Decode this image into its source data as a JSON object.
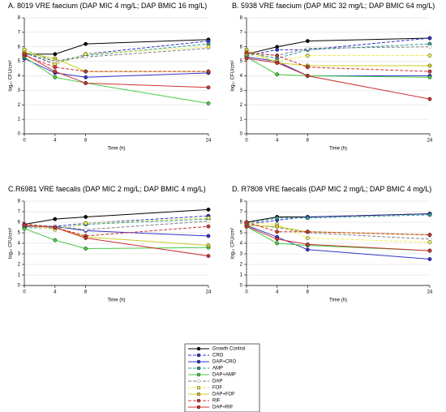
{
  "chart_data": [
    {
      "type": "line",
      "title": "A. 8019 VRE faecium (DAP MIC 4 mg/L; DAP BMIC 16 mg/L)",
      "x_label": "Time (h)",
      "y_label": "log₁₀ CFU/cm²",
      "x": [
        0,
        4,
        8,
        24
      ],
      "xlim": [
        0,
        24
      ],
      "xticks": [
        0,
        4,
        8,
        24
      ],
      "ylim": [
        0,
        8
      ],
      "yticks": [
        0,
        1,
        2,
        3,
        4,
        5,
        6,
        7,
        8
      ],
      "grid": true,
      "series": [
        {
          "values": [
            5.5,
            5.5,
            6.2,
            6.5
          ]
        },
        {
          "values": [
            5.6,
            4.8,
            5.5,
            6.4
          ]
        },
        {
          "values": [
            5.2,
            4.2,
            3.9,
            4.2
          ]
        },
        {
          "values": [
            5.6,
            5.0,
            5.4,
            6.2
          ]
        },
        {
          "values": [
            5.3,
            3.9,
            3.5,
            2.1
          ]
        },
        {
          "values": [
            5.8,
            5.0,
            5.3,
            5.9
          ]
        },
        {
          "values": [
            5.8,
            4.8,
            5.5,
            6.0
          ]
        },
        {
          "values": [
            5.6,
            5.2,
            4.3,
            4.3
          ]
        },
        {
          "values": [
            5.4,
            4.6,
            4.3,
            4.3
          ]
        },
        {
          "values": [
            5.5,
            4.3,
            3.5,
            3.2
          ]
        }
      ]
    },
    {
      "type": "line",
      "title": "B. 5938 VRE faecium (DAP MIC 32 mg/L; DAP BMIC 64 mg/L)",
      "x_label": "Time (h)",
      "y_label": "log₁₀ CFU/cm²",
      "x": [
        0,
        4,
        8,
        24
      ],
      "xlim": [
        0,
        24
      ],
      "xticks": [
        0,
        4,
        8,
        24
      ],
      "ylim": [
        0,
        8
      ],
      "yticks": [
        0,
        1,
        2,
        3,
        4,
        5,
        6,
        7,
        8
      ],
      "grid": true,
      "series": [
        {
          "values": [
            5.5,
            6.0,
            6.4,
            6.6
          ]
        },
        {
          "values": [
            5.4,
            5.8,
            5.8,
            6.6
          ]
        },
        {
          "values": [
            5.3,
            5.0,
            4.0,
            4.0
          ]
        },
        {
          "values": [
            5.6,
            5.2,
            5.8,
            6.2
          ]
        },
        {
          "values": [
            5.3,
            4.1,
            4.0,
            3.9
          ]
        },
        {
          "values": [
            5.6,
            5.4,
            5.9,
            6.0
          ]
        },
        {
          "values": [
            5.5,
            5.0,
            5.4,
            5.4
          ]
        },
        {
          "values": [
            5.8,
            4.9,
            4.7,
            4.7
          ]
        },
        {
          "values": [
            5.6,
            5.4,
            4.6,
            4.3
          ]
        },
        {
          "values": [
            5.2,
            4.9,
            4.0,
            2.4
          ]
        }
      ]
    },
    {
      "type": "line",
      "title": "C.R6981 VRE faecalis (DAP MIC 2 mg/L; DAP BMIC 4 mg/L)",
      "x_label": "Time (h)",
      "y_label": "log₁₀ CFU/cm²",
      "x": [
        0,
        4,
        8,
        24
      ],
      "xlim": [
        0,
        24
      ],
      "xticks": [
        0,
        4,
        8,
        24
      ],
      "ylim": [
        0,
        8
      ],
      "yticks": [
        0,
        1,
        2,
        3,
        4,
        5,
        6,
        7,
        8
      ],
      "grid": true,
      "series": [
        {
          "values": [
            5.8,
            6.3,
            6.5,
            7.2
          ]
        },
        {
          "values": [
            5.7,
            5.6,
            5.9,
            6.6
          ]
        },
        {
          "values": [
            5.6,
            5.6,
            5.2,
            4.7
          ]
        },
        {
          "values": [
            5.5,
            5.4,
            5.8,
            6.3
          ]
        },
        {
          "values": [
            5.4,
            4.3,
            3.5,
            3.6
          ]
        },
        {
          "values": [
            5.8,
            5.6,
            5.3,
            6.1
          ]
        },
        {
          "values": [
            5.7,
            5.3,
            5.9,
            6.4
          ]
        },
        {
          "values": [
            5.7,
            5.5,
            4.6,
            3.8
          ]
        },
        {
          "values": [
            5.8,
            5.5,
            4.7,
            5.6
          ]
        },
        {
          "values": [
            5.7,
            5.5,
            4.5,
            2.8
          ]
        }
      ]
    },
    {
      "type": "line",
      "title": "D. R7808 VRE faecalis (DAP MIC 2 mg/L; DAP BMIC 4 mg/L)",
      "x_label": "Time (h)",
      "y_label": "log₁₀ CFU/cm²",
      "x": [
        0,
        4,
        8,
        24
      ],
      "xlim": [
        0,
        24
      ],
      "xticks": [
        0,
        4,
        8,
        24
      ],
      "ylim": [
        0,
        8
      ],
      "yticks": [
        0,
        1,
        2,
        3,
        4,
        5,
        6,
        7,
        8
      ],
      "grid": true,
      "series": [
        {
          "values": [
            6.0,
            6.5,
            6.5,
            6.8
          ]
        },
        {
          "values": [
            5.8,
            6.2,
            6.5,
            6.8
          ]
        },
        {
          "values": [
            5.7,
            4.6,
            3.4,
            2.5
          ]
        },
        {
          "values": [
            5.9,
            6.4,
            6.4,
            6.7
          ]
        },
        {
          "values": [
            5.6,
            4.0,
            3.8,
            3.3
          ]
        },
        {
          "values": [
            5.8,
            5.5,
            5.0,
            4.4
          ]
        },
        {
          "values": [
            5.9,
            5.8,
            4.5,
            4.1
          ]
        },
        {
          "values": [
            5.7,
            5.6,
            5.1,
            4.8
          ]
        },
        {
          "values": [
            6.0,
            5.1,
            5.1,
            4.8
          ]
        },
        {
          "values": [
            5.6,
            4.4,
            3.9,
            3.3
          ]
        }
      ]
    }
  ],
  "legend": {
    "entries": [
      {
        "name": "Growth Control",
        "color": "#000000",
        "dashed": false,
        "open": false
      },
      {
        "name": "CRO",
        "color": "#3333cc",
        "dashed": true,
        "open": false
      },
      {
        "name": "DAP+CRO",
        "color": "#3333cc",
        "dashed": false,
        "open": false
      },
      {
        "name": "AMP",
        "color": "#339999",
        "dashed": true,
        "open": false
      },
      {
        "name": "DAP+AMP",
        "color": "#44cc44",
        "dashed": false,
        "open": false
      },
      {
        "name": "DAP",
        "color": "#808080",
        "dashed": true,
        "open": true
      },
      {
        "name": "FOF",
        "color": "#eeee55",
        "dashed": true,
        "open": false
      },
      {
        "name": "DAP+FOF",
        "color": "#cccc22",
        "dashed": false,
        "open": false
      },
      {
        "name": "RIF",
        "color": "#cc3333",
        "dashed": true,
        "open": false
      },
      {
        "name": "DAP+RIF",
        "color": "#cc3333",
        "dashed": false,
        "open": false
      }
    ]
  }
}
